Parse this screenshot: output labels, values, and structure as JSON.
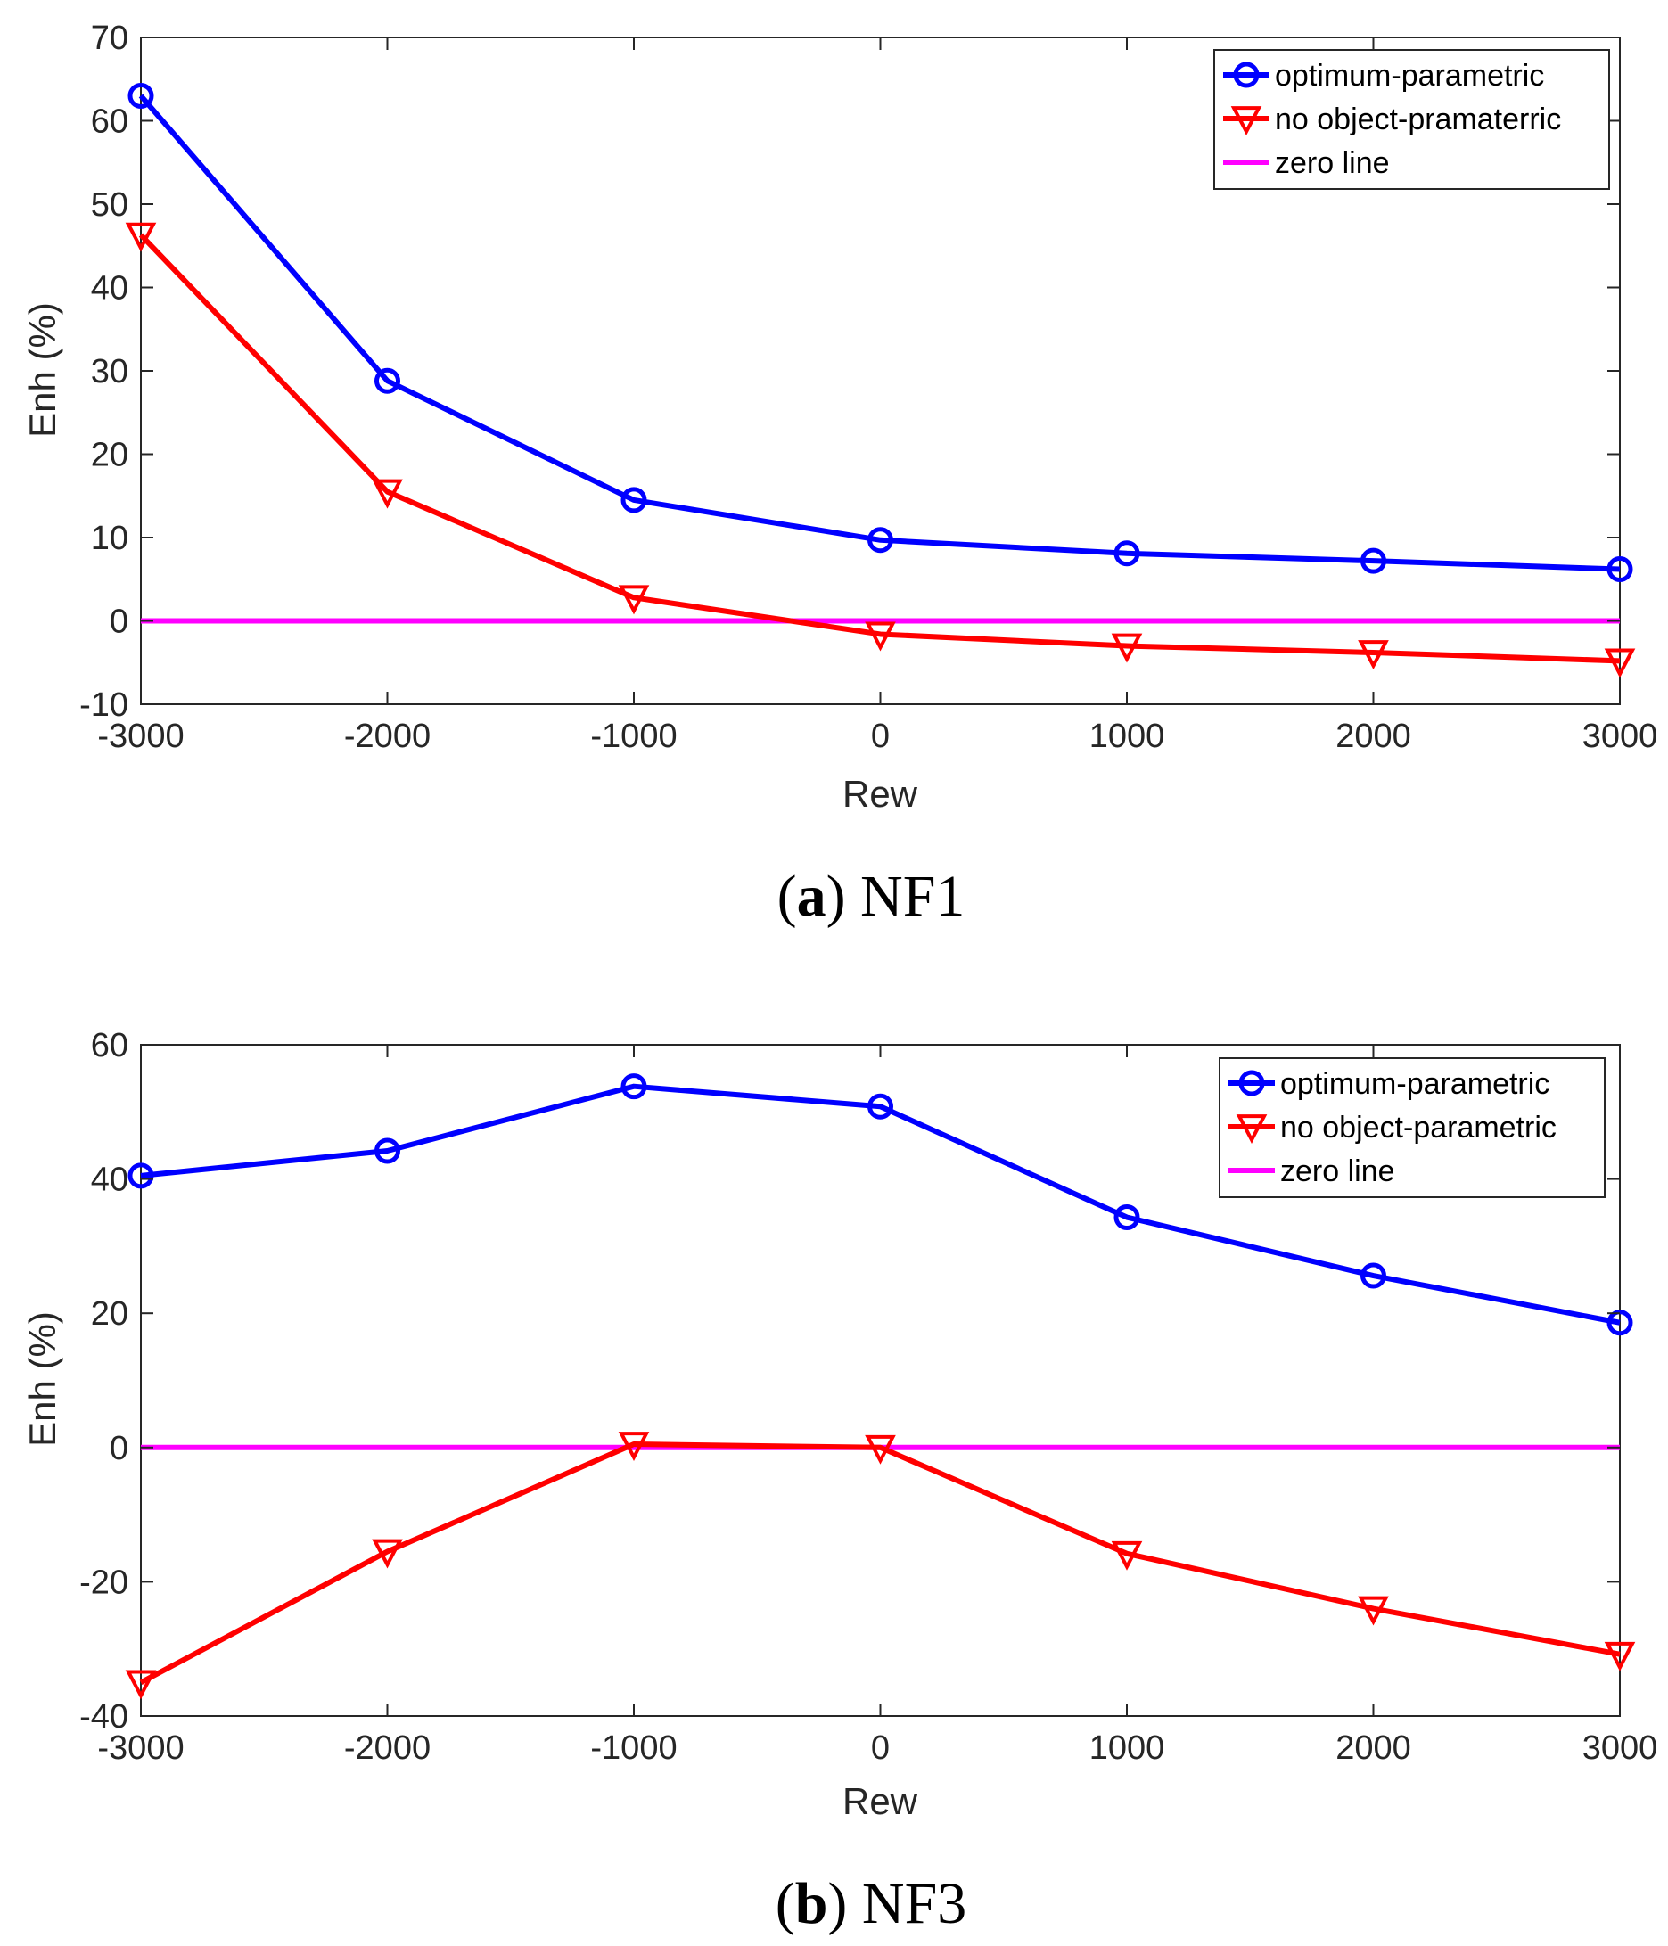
{
  "chart_data": [
    {
      "type": "line",
      "caption_letter": "a",
      "caption_text": "NF1",
      "xlabel": "Rew",
      "ylabel": "Enh (%)",
      "xlim": [
        -3000,
        3000
      ],
      "ylim": [
        -10,
        70
      ],
      "xticks": [
        -3000,
        -2000,
        -1000,
        0,
        1000,
        2000,
        3000
      ],
      "yticks": [
        -10,
        0,
        10,
        20,
        30,
        40,
        50,
        60,
        70
      ],
      "legend_position": "top-right",
      "x": [
        -3000,
        -2000,
        -1000,
        0,
        1000,
        2000,
        3000
      ],
      "series": [
        {
          "name": "optimum-parametric",
          "marker": "circle",
          "color": "#0000ff",
          "values": [
            63,
            28.8,
            14.5,
            9.7,
            8.1,
            7.2,
            6.2
          ]
        },
        {
          "name": "no object-pramaterric",
          "marker": "triangle-down",
          "color": "#ff0000",
          "values": [
            46.3,
            15.5,
            2.8,
            -1.6,
            -3.0,
            -3.8,
            -4.8
          ]
        },
        {
          "name": "zero line",
          "marker": "none",
          "color": "#ff00ff",
          "values": [
            0,
            0,
            0,
            0,
            0,
            0,
            0
          ]
        }
      ]
    },
    {
      "type": "line",
      "caption_letter": "b",
      "caption_text": "NF3",
      "xlabel": "Rew",
      "ylabel": "Enh (%)",
      "xlim": [
        -3000,
        3000
      ],
      "ylim": [
        -40,
        60
      ],
      "xticks": [
        -3000,
        -2000,
        -1000,
        0,
        1000,
        2000,
        3000
      ],
      "yticks": [
        -40,
        -20,
        0,
        20,
        40,
        60
      ],
      "legend_position": "top-right",
      "x": [
        -3000,
        -2000,
        -1000,
        0,
        1000,
        2000,
        3000
      ],
      "series": [
        {
          "name": "optimum-parametric",
          "marker": "circle",
          "color": "#0000ff",
          "values": [
            40.5,
            44.2,
            53.8,
            50.8,
            34.3,
            25.6,
            18.6
          ]
        },
        {
          "name": "no object-parametric",
          "marker": "triangle-down",
          "color": "#ff0000",
          "values": [
            -35,
            -15.5,
            0.5,
            0,
            -15.8,
            -24,
            -30.8
          ]
        },
        {
          "name": "zero line",
          "marker": "none",
          "color": "#ff00ff",
          "values": [
            0,
            0,
            0,
            0,
            0,
            0,
            0
          ]
        }
      ]
    }
  ]
}
